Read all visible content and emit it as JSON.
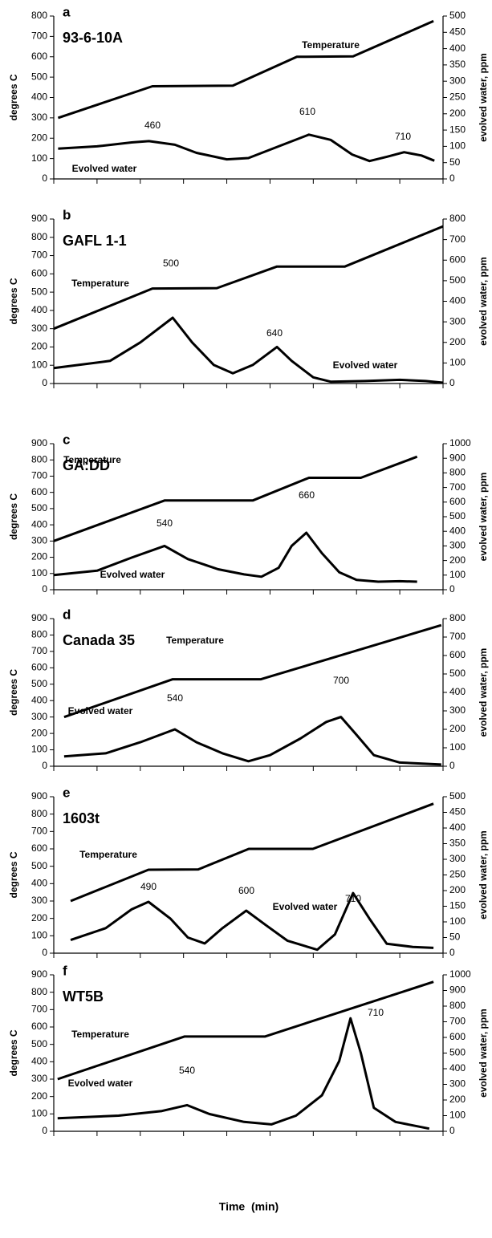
{
  "chart_data": [
    {
      "type": "line",
      "label": "a",
      "title": "93-6-10A",
      "ylabel": "degrees C",
      "y2label": "evolved water, ppm",
      "xlim": [
        0,
        9
      ],
      "xticks": [
        0,
        1,
        2,
        3,
        4,
        5,
        6,
        7,
        8,
        9
      ],
      "ylim": [
        0,
        800
      ],
      "yticks": [
        0,
        100,
        200,
        300,
        400,
        500,
        600,
        700,
        800
      ],
      "y2lim": [
        0,
        500
      ],
      "y2ticks": [
        0,
        50,
        100,
        150,
        200,
        250,
        300,
        350,
        400,
        450,
        500
      ],
      "series": [
        {
          "name": "Temperature",
          "color": "#000000",
          "x": [
            0.1,
            2.28,
            4.14,
            5.62,
            6.92,
            8.78
          ],
          "values": [
            300,
            455,
            458,
            600,
            602,
            775
          ]
        },
        {
          "name": "Evolved water",
          "color": "#000000",
          "axis": "y2",
          "x": [
            0.1,
            1,
            1.8,
            2.2,
            2.8,
            3.3,
            4.0,
            4.5,
            5.2,
            5.9,
            6.4,
            6.9,
            7.3,
            7.7,
            8.1,
            8.5,
            8.8
          ],
          "values": [
            93,
            100,
            112,
            116,
            105,
            80,
            60,
            64,
            100,
            136,
            120,
            75,
            55,
            68,
            82,
            72,
            56
          ]
        }
      ],
      "annotations": [
        "460",
        "610",
        "710"
      ]
    },
    {
      "type": "line",
      "label": "b",
      "title": "GAFL 1-1",
      "ylabel": "degrees C",
      "y2label": "evolved water, ppm",
      "xlim": [
        0,
        9
      ],
      "xticks": [
        0,
        1,
        2,
        3,
        4,
        5,
        6,
        7,
        8,
        9
      ],
      "ylim": [
        0,
        900
      ],
      "yticks": [
        0,
        100,
        200,
        300,
        400,
        500,
        600,
        700,
        800,
        900
      ],
      "y2lim": [
        0,
        800
      ],
      "y2ticks": [
        0,
        100,
        200,
        300,
        400,
        500,
        600,
        700,
        800
      ],
      "series": [
        {
          "name": "Temperature",
          "color": "#000000",
          "x": [
            0.0,
            2.28,
            3.77,
            5.16,
            6.73,
            9.0
          ],
          "values": [
            300,
            520,
            522,
            640,
            640,
            860
          ]
        },
        {
          "name": "Evolved water",
          "color": "#000000",
          "axis": "y2",
          "x": [
            0.0,
            1.3,
            2.0,
            2.75,
            3.2,
            3.7,
            4.14,
            4.6,
            5.16,
            5.5,
            6.0,
            6.4,
            7.2,
            8.0,
            8.6,
            9.0
          ],
          "values": [
            75,
            110,
            200,
            320,
            200,
            90,
            50,
            90,
            178,
            110,
            30,
            9,
            12,
            18,
            12,
            4
          ]
        }
      ],
      "annotations": [
        "500",
        "640"
      ]
    },
    {
      "type": "line",
      "label": "c",
      "title": "GA:DD",
      "ylabel": "degrees C",
      "y2label": "evolved water, ppm",
      "xlim": [
        0,
        9
      ],
      "xticks": [
        0,
        1,
        2,
        3,
        4,
        5,
        6,
        7,
        8,
        9
      ],
      "ylim": [
        0,
        900
      ],
      "yticks": [
        0,
        100,
        200,
        300,
        400,
        500,
        600,
        700,
        800,
        900
      ],
      "y2lim": [
        0,
        1000
      ],
      "y2ticks": [
        0,
        100,
        200,
        300,
        400,
        500,
        600,
        700,
        800,
        900,
        1000
      ],
      "series": [
        {
          "name": "Temperature",
          "color": "#000000",
          "x": [
            0.0,
            2.56,
            4.6,
            5.9,
            7.1,
            8.4
          ],
          "values": [
            300,
            550,
            550,
            690,
            690,
            820
          ]
        },
        {
          "name": "Evolved water",
          "color": "#000000",
          "axis": "y2",
          "x": [
            0.0,
            1,
            1.8,
            2.56,
            3.1,
            3.8,
            4.4,
            4.8,
            5.2,
            5.5,
            5.84,
            6.2,
            6.6,
            7.0,
            7.5,
            8.0,
            8.4
          ],
          "values": [
            100,
            130,
            220,
            300,
            210,
            140,
            105,
            89,
            150,
            300,
            390,
            250,
            120,
            67,
            55,
            58,
            55
          ]
        }
      ],
      "annotations": [
        "540",
        "660"
      ]
    },
    {
      "type": "line",
      "label": "d",
      "title": "Canada 35",
      "ylabel": "degrees C",
      "y2label": "evolved water, ppm",
      "xlim": [
        0,
        9
      ],
      "xticks": [
        0,
        1,
        2,
        3,
        4,
        5,
        6,
        7,
        8,
        9
      ],
      "ylim": [
        0,
        900
      ],
      "yticks": [
        0,
        100,
        200,
        300,
        400,
        500,
        600,
        700,
        800,
        900
      ],
      "y2lim": [
        0,
        800
      ],
      "y2ticks": [
        0,
        100,
        200,
        300,
        400,
        500,
        600,
        700,
        800
      ],
      "series": [
        {
          "name": "Temperature",
          "color": "#000000",
          "x": [
            0.24,
            2.75,
            4.79,
            8.96
          ],
          "values": [
            300,
            530,
            530,
            860
          ]
        },
        {
          "name": "Evolved water",
          "color": "#000000",
          "axis": "y2",
          "x": [
            0.24,
            1.2,
            2.0,
            2.8,
            3.3,
            3.9,
            4.5,
            5.0,
            5.7,
            6.3,
            6.64,
            7.0,
            7.4,
            8.0,
            8.96
          ],
          "values": [
            53,
            70,
            130,
            200,
            130,
            70,
            27,
            60,
            150,
            240,
            267,
            170,
            60,
            20,
            9
          ]
        }
      ],
      "annotations": [
        "540",
        "700"
      ]
    },
    {
      "type": "line",
      "label": "e",
      "title": "1603t",
      "ylabel": "degrees C",
      "y2label": "evolved water, ppm",
      "xlim": [
        0,
        9
      ],
      "xticks": [
        0,
        1,
        2,
        3,
        4,
        5,
        6,
        7,
        8,
        9
      ],
      "ylim": [
        0,
        900
      ],
      "yticks": [
        0,
        100,
        200,
        300,
        400,
        500,
        600,
        700,
        800,
        900
      ],
      "y2lim": [
        0,
        500
      ],
      "y2ticks": [
        0,
        50,
        100,
        150,
        200,
        250,
        300,
        350,
        400,
        450,
        500
      ],
      "series": [
        {
          "name": "Temperature",
          "color": "#000000",
          "x": [
            0.39,
            2.19,
            3.34,
            4.51,
            5.99,
            8.78
          ],
          "values": [
            300,
            480,
            482,
            600,
            600,
            860
          ]
        },
        {
          "name": "Evolved water",
          "color": "#000000",
          "axis": "y2",
          "x": [
            0.39,
            1.2,
            1.8,
            2.19,
            2.7,
            3.1,
            3.49,
            3.9,
            4.45,
            4.9,
            5.4,
            6.09,
            6.5,
            6.92,
            7.3,
            7.7,
            8.3,
            8.78
          ],
          "values": [
            42,
            80,
            140,
            164,
            110,
            50,
            31,
            80,
            136,
            90,
            40,
            11,
            60,
            192,
            110,
            30,
            20,
            17
          ]
        }
      ],
      "annotations": [
        "490",
        "600",
        "710"
      ]
    },
    {
      "type": "line",
      "label": "f",
      "title": "WT5B",
      "ylabel": "degrees C",
      "y2label": "evolved water, ppm",
      "xlabel": "Time  (min)",
      "xlim": [
        0,
        9
      ],
      "xticks": [
        0,
        1,
        2,
        3,
        4,
        5,
        6,
        7,
        8,
        9
      ],
      "ylim": [
        0,
        900
      ],
      "yticks": [
        0,
        100,
        200,
        300,
        400,
        500,
        600,
        700,
        800,
        900
      ],
      "y2lim": [
        0,
        1000
      ],
      "y2ticks": [
        0,
        100,
        200,
        300,
        400,
        500,
        600,
        700,
        800,
        900,
        1000
      ],
      "series": [
        {
          "name": "Temperature",
          "color": "#000000",
          "x": [
            0.09,
            3.02,
            4.88,
            8.78
          ],
          "values": [
            300,
            545,
            545,
            860
          ]
        },
        {
          "name": "Evolved water",
          "color": "#000000",
          "axis": "y2",
          "x": [
            0.09,
            1.5,
            2.5,
            3.08,
            3.6,
            4.4,
            5.03,
            5.6,
            6.2,
            6.6,
            6.86,
            7.1,
            7.4,
            7.9,
            8.68
          ],
          "values": [
            83,
            100,
            130,
            167,
            110,
            60,
            44,
            100,
            230,
            450,
            722,
            500,
            150,
            60,
            17
          ]
        }
      ],
      "annotations": [
        "540",
        "710"
      ]
    }
  ]
}
